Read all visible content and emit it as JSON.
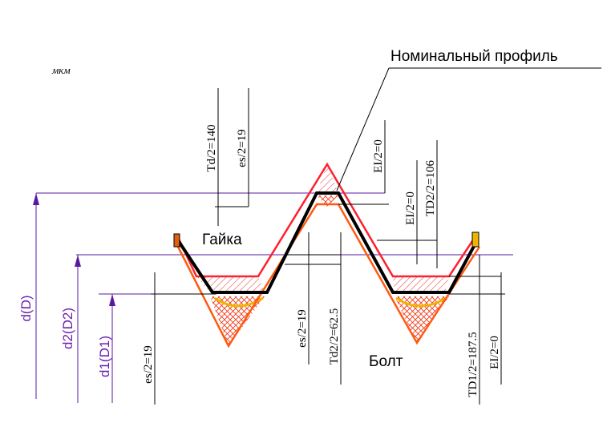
{
  "units": "мкм",
  "leader_label": "Номинальный профиль",
  "labels": {
    "nut": "Гайка",
    "bolt": "Болт"
  },
  "diameters": [
    "d(D)",
    "d2(D2)",
    "d1(D1)"
  ],
  "dimensions": [
    "Td/2=140",
    "es/2=19",
    "EI/2=0",
    "EI/2=0",
    "TD2/2=106",
    "es/2=19",
    "Td2/2=62.5",
    "TD1/2=187.5",
    "EI/2=0",
    "es/2=19"
  ]
}
